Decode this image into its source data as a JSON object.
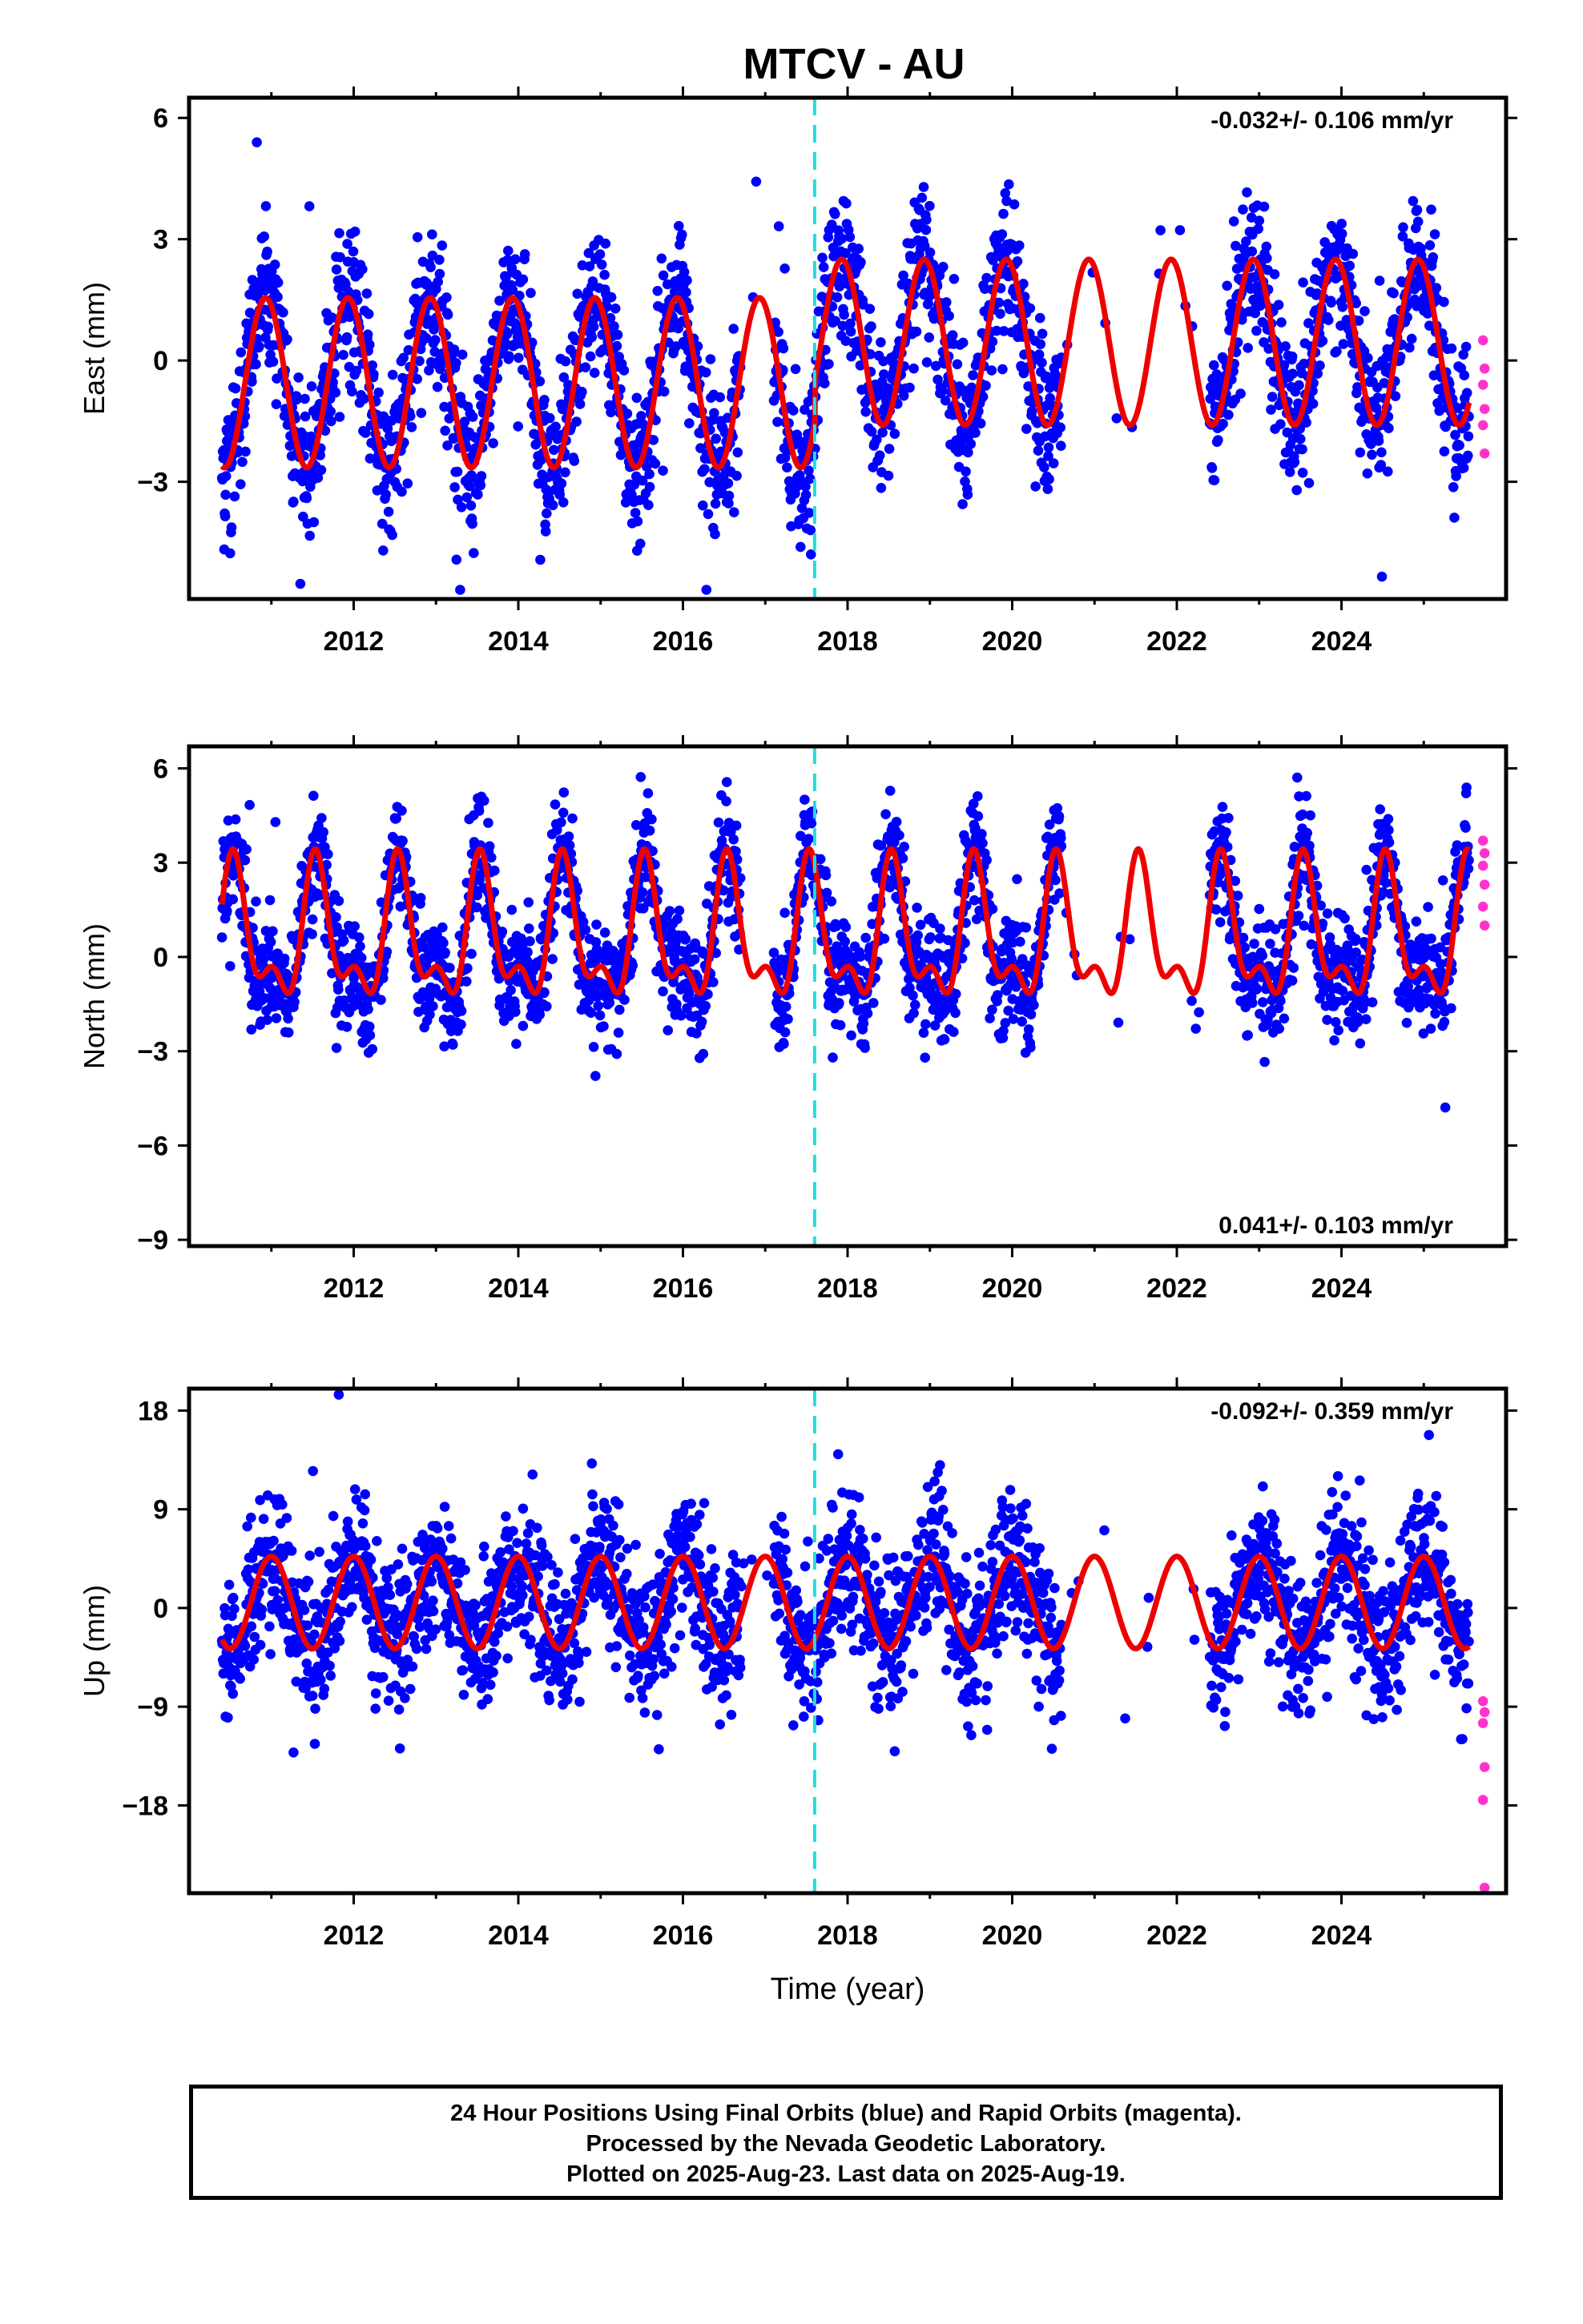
{
  "title": "MTCV - AU",
  "footer": {
    "line1": "24 Hour Positions Using Final Orbits (blue) and Rapid Orbits (magenta).",
    "line2": "Processed by the Nevada Geodetic Laboratory.",
    "line3": "Plotted on 2025-Aug-23. Last data on 2025-Aug-19."
  },
  "chart_data": [
    {
      "type": "scatter",
      "component": "east",
      "ylabel": "East (mm)",
      "xlabel": "",
      "xlim": [
        2010.0,
        2026.0
      ],
      "ylim": [
        -5.9,
        6.5
      ],
      "xticks": [
        2012,
        2014,
        2016,
        2018,
        2020,
        2022,
        2024
      ],
      "yticks": [
        -3,
        0,
        3,
        6
      ],
      "velocity_label": "-0.032+/- 0.106 mm/yr",
      "velocity_label_position": "top-right",
      "equipment_change_epoch": 2017.6,
      "data_range": [
        2010.4,
        2025.55
      ],
      "gap_years": [
        [
          2016.7,
          2017.1
        ],
        [
          2020.6,
          2022.4
        ]
      ],
      "model": {
        "offset": -0.4,
        "annual_amplitude": 2.1,
        "peak_month_fraction": 0.93,
        "post_2017_amplitude": 2.1,
        "post_2017_offset": 0.5
      },
      "scatter_sigma": 0.9,
      "series": [
        {
          "name": "Final Orbits",
          "color": "#0000ff",
          "kind": "points"
        },
        {
          "name": "Rapid Orbits",
          "color": "#ff33cc",
          "kind": "points",
          "values": [
            0.5,
            -0.2,
            -0.6,
            -1.2,
            -1.6,
            -2.3
          ]
        },
        {
          "name": "Model fit",
          "color": "#ee0000",
          "kind": "line"
        }
      ]
    },
    {
      "type": "scatter",
      "component": "north",
      "ylabel": "North (mm)",
      "xlabel": "",
      "xlim": [
        2010.0,
        2026.0
      ],
      "ylim": [
        -9.2,
        6.7
      ],
      "xticks": [
        2012,
        2014,
        2016,
        2018,
        2020,
        2022,
        2024
      ],
      "yticks": [
        -9,
        -6,
        -3,
        0,
        3,
        6
      ],
      "velocity_label": "0.041+/- 0.103 mm/yr",
      "velocity_label_position": "bottom-right",
      "equipment_change_epoch": 2017.6,
      "data_range": [
        2010.4,
        2025.55
      ],
      "gap_years": [
        [
          2016.7,
          2017.1
        ],
        [
          2020.6,
          2022.4
        ]
      ],
      "scatter_sigma": 0.9,
      "series": [
        {
          "name": "Final Orbits",
          "color": "#0000ff",
          "kind": "points"
        },
        {
          "name": "Rapid Orbits",
          "color": "#ff33cc",
          "kind": "points",
          "values": [
            3.7,
            3.3,
            2.9,
            2.3,
            1.6,
            1.0
          ]
        },
        {
          "name": "Model fit",
          "color": "#ee0000",
          "kind": "line"
        }
      ]
    },
    {
      "type": "scatter",
      "component": "up",
      "ylabel": "Up (mm)",
      "xlabel": "Time (year)",
      "xlim": [
        2010.0,
        2026.0
      ],
      "ylim": [
        -26,
        20
      ],
      "xticks": [
        2012,
        2014,
        2016,
        2018,
        2020,
        2022,
        2024
      ],
      "yticks": [
        -18,
        -9,
        0,
        9,
        18
      ],
      "velocity_label": "-0.092+/- 0.359 mm/yr",
      "velocity_label_position": "top-right",
      "equipment_change_epoch": 2017.6,
      "data_range": [
        2010.4,
        2025.55
      ],
      "gap_years": [
        [
          2016.7,
          2017.1
        ],
        [
          2020.6,
          2022.4
        ]
      ],
      "scatter_sigma": 3.3,
      "series": [
        {
          "name": "Final Orbits",
          "color": "#0000ff",
          "kind": "points"
        },
        {
          "name": "Rapid Orbits",
          "color": "#ff33cc",
          "kind": "points",
          "values": [
            -8.5,
            -9.5,
            -10.5,
            -14.5,
            -17.5,
            -25.5
          ]
        },
        {
          "name": "Model fit",
          "color": "#ee0000",
          "kind": "line"
        }
      ]
    }
  ]
}
